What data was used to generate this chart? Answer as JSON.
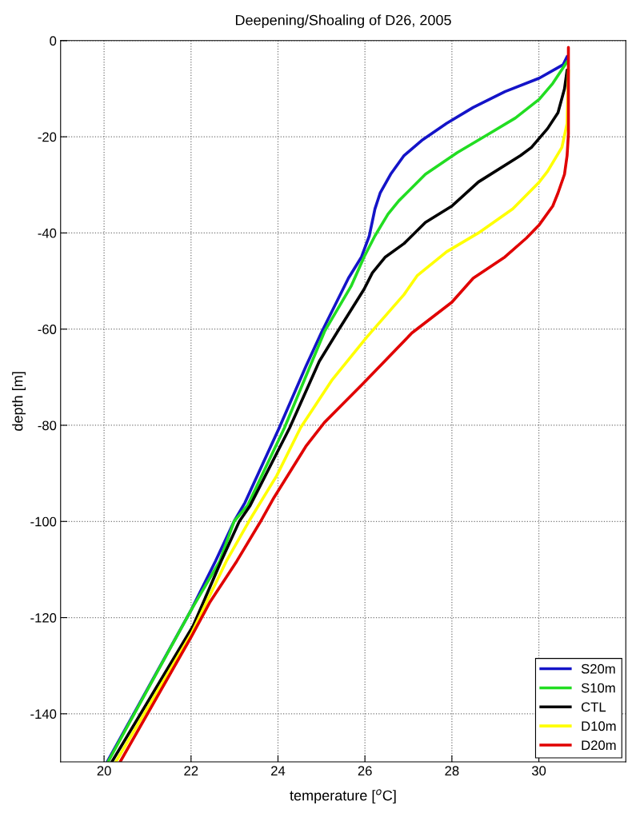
{
  "chart_data": {
    "type": "line",
    "title": "Deepening/Shoaling of D26, 2005",
    "xlabel": "temperature [$^{o}$C]",
    "ylabel": "depth [m]",
    "xlim": [
      19,
      32
    ],
    "xticks": [
      20,
      22,
      24,
      26,
      28,
      30
    ],
    "ylim": [
      -150,
      0
    ],
    "yticks": [
      -140,
      -120,
      -100,
      -80,
      -60,
      -40,
      -20,
      0
    ],
    "grid": true,
    "legend": "bottom right",
    "line_style": "solid",
    "marker": "none",
    "series": [
      {
        "name": "S20m",
        "color": "#1414c8",
        "x": [
          30.65,
          30.56,
          30.01,
          29.22,
          28.49,
          27.88,
          27.33,
          26.9,
          26.59,
          26.35,
          26.23,
          26.1,
          25.92,
          25.62,
          25.01,
          24.64,
          24.03,
          23.24,
          22.99,
          22.56,
          22.01,
          20.07
        ],
        "values": [
          -3.3,
          -5,
          -7.8,
          -10.6,
          -13.9,
          -17.2,
          -20.6,
          -23.9,
          -27.8,
          -31.7,
          -35,
          -40.6,
          -45,
          -49.4,
          -60.5,
          -67.8,
          -80.5,
          -96.1,
          -100,
          -108.3,
          -118.3,
          -150
        ]
      },
      {
        "name": "S10m",
        "color": "#22dd22",
        "x": [
          30.65,
          30.32,
          30.01,
          29.46,
          28.85,
          28.12,
          27.39,
          26.78,
          26.53,
          26.23,
          25.98,
          25.68,
          25.07,
          24.15,
          23.3,
          22.99,
          22.66,
          22.01,
          20.09
        ],
        "values": [
          -4.4,
          -8.9,
          -12.2,
          -16.1,
          -19.4,
          -23.3,
          -27.8,
          -33.3,
          -36.1,
          -40.6,
          -45,
          -51.1,
          -60.5,
          -80.5,
          -96.7,
          -100,
          -108.3,
          -118.3,
          -150
        ]
      },
      {
        "name": "CTL",
        "color": "#000000",
        "x": [
          30.65,
          30.59,
          30.44,
          30.2,
          29.83,
          29.58,
          28.61,
          28.0,
          27.39,
          26.9,
          26.47,
          26.17,
          25.98,
          25.37,
          24.95,
          24.27,
          23.36,
          23.11,
          22.69,
          22.05,
          20.18
        ],
        "values": [
          -6.1,
          -10,
          -15,
          -18.3,
          -22.2,
          -23.9,
          -29.4,
          -34.4,
          -37.8,
          -42.2,
          -45,
          -48.3,
          -51.7,
          -60.5,
          -66.7,
          -80.5,
          -96.7,
          -100,
          -108.3,
          -121.7,
          -150
        ]
      },
      {
        "name": "D10m",
        "color": "#ffff00",
        "x": [
          30.68,
          30.65,
          30.53,
          30.2,
          30.01,
          29.4,
          28.61,
          27.88,
          27.2,
          26.9,
          26.04,
          25.25,
          24.52,
          23.97,
          23.33,
          22.81,
          22.01,
          20.27
        ],
        "values": [
          -6.1,
          -17.2,
          -22.2,
          -27.2,
          -29.4,
          -35,
          -40,
          -43.9,
          -48.9,
          -52.8,
          -61.7,
          -70.5,
          -80.5,
          -90.5,
          -100,
          -108.3,
          -123.3,
          -150
        ]
      },
      {
        "name": "D20m",
        "color": "#e00000",
        "x": [
          30.68,
          30.68,
          30.65,
          30.59,
          30.44,
          30.32,
          30.01,
          29.71,
          29.22,
          28.49,
          28.0,
          27.08,
          25.98,
          25.07,
          24.64,
          23.91,
          23.6,
          23.05,
          22.44,
          22.01,
          20.37
        ],
        "values": [
          -1.4,
          -19.4,
          -23.9,
          -27.8,
          -31.7,
          -34.4,
          -38.3,
          -41.1,
          -45,
          -49.4,
          -54.4,
          -60.8,
          -71.1,
          -79.4,
          -84.4,
          -95,
          -100,
          -108.3,
          -116.7,
          -123.9,
          -150
        ]
      }
    ]
  }
}
